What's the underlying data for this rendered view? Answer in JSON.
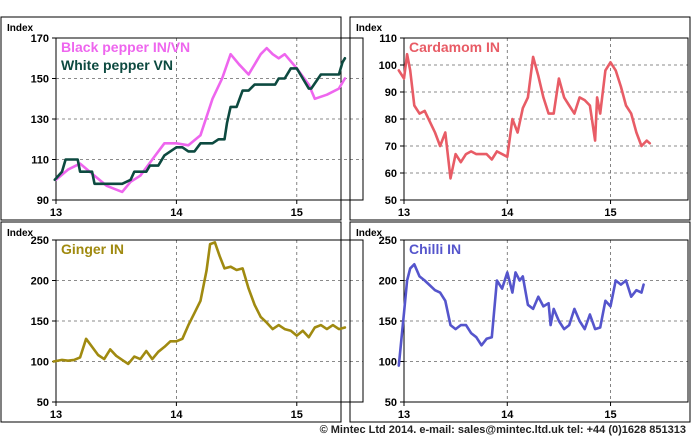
{
  "footer": "© Mintec Ltd 2014. e-mail: sales@mintec.ltd.uk tel: +44 (0)1628 851313",
  "chart_data": [
    {
      "type": "line",
      "ylabel": "Index",
      "ylim": [
        90,
        170
      ],
      "yticks": [
        90,
        110,
        130,
        150,
        170
      ],
      "xlim": [
        2013,
        2015.55
      ],
      "xticks": [
        {
          "x": 2013,
          "label": "13"
        },
        {
          "x": 2014,
          "label": "14"
        },
        {
          "x": 2015,
          "label": "15"
        }
      ],
      "grid": true,
      "legend": "top-left",
      "series": [
        {
          "name": "Black pepper IN/VN",
          "color": "#ee66ee",
          "x": [
            2013.0,
            2013.1,
            2013.2,
            2013.3,
            2013.42,
            2013.55,
            2013.62,
            2013.7,
            2013.8,
            2013.9,
            2014.0,
            2014.1,
            2014.2,
            2014.3,
            2014.38,
            2014.45,
            2014.52,
            2014.6,
            2014.7,
            2014.75,
            2014.8,
            2014.85,
            2014.9,
            2015.0,
            2015.1,
            2015.15,
            2015.25,
            2015.35,
            2015.4
          ],
          "y": [
            100,
            105,
            108,
            103,
            97,
            94,
            99,
            102,
            110,
            118,
            118,
            117,
            122,
            140,
            150,
            162,
            157,
            152,
            162,
            165,
            162,
            160,
            162,
            155,
            147,
            140,
            142,
            145,
            150
          ]
        },
        {
          "name": "White pepper VN",
          "color": "#0d4a40",
          "x": [
            2012.99,
            2013.05,
            2013.08,
            2013.18,
            2013.2,
            2013.3,
            2013.32,
            2013.45,
            2013.55,
            2013.62,
            2013.65,
            2013.75,
            2013.78,
            2013.85,
            2013.9,
            2014.0,
            2014.05,
            2014.1,
            2014.15,
            2014.2,
            2014.3,
            2014.35,
            2014.4,
            2014.42,
            2014.45,
            2014.5,
            2014.55,
            2014.6,
            2014.65,
            2014.7,
            2014.82,
            2014.85,
            2014.9,
            2014.95,
            2015.0,
            2015.05,
            2015.1,
            2015.12,
            2015.2,
            2015.25,
            2015.35,
            2015.38,
            2015.4
          ],
          "y": [
            100,
            104,
            110,
            110,
            104,
            104,
            98,
            98,
            98,
            100,
            104,
            104,
            107,
            107,
            112,
            116,
            116,
            114,
            114,
            118,
            118,
            120,
            120,
            128,
            136,
            136,
            144,
            144,
            147,
            147,
            147,
            150,
            150,
            155,
            155,
            150,
            145,
            145,
            152,
            152,
            152,
            158,
            160
          ]
        }
      ]
    },
    {
      "type": "line",
      "ylabel": "Index",
      "ylim": [
        50,
        110
      ],
      "yticks": [
        50,
        60,
        70,
        80,
        90,
        100,
        110
      ],
      "xlim": [
        2013,
        2015.75
      ],
      "xticks": [
        {
          "x": 2013,
          "label": "13"
        },
        {
          "x": 2014,
          "label": "14"
        },
        {
          "x": 2015,
          "label": "15"
        }
      ],
      "grid": true,
      "legend": "top-left",
      "series": [
        {
          "name": "Cardamom IN",
          "color": "#e85c66",
          "x": [
            2012.95,
            2013.0,
            2013.03,
            2013.06,
            2013.1,
            2013.15,
            2013.2,
            2013.3,
            2013.35,
            2013.4,
            2013.45,
            2013.5,
            2013.55,
            2013.6,
            2013.65,
            2013.7,
            2013.8,
            2013.85,
            2013.9,
            2014.0,
            2014.05,
            2014.1,
            2014.15,
            2014.2,
            2014.25,
            2014.3,
            2014.35,
            2014.4,
            2014.45,
            2014.5,
            2014.55,
            2014.6,
            2014.65,
            2014.7,
            2014.75,
            2014.8,
            2014.85,
            2014.87,
            2014.9,
            2014.95,
            2015.0,
            2015.05,
            2015.1,
            2015.15,
            2015.2,
            2015.25,
            2015.3,
            2015.35,
            2015.38
          ],
          "y": [
            98,
            95,
            104,
            98,
            85,
            82,
            83,
            75,
            70,
            75,
            58,
            67,
            64,
            67,
            68,
            67,
            67,
            65,
            68,
            66,
            80,
            75,
            84,
            88,
            103,
            96,
            88,
            82,
            82,
            95,
            88,
            85,
            82,
            88,
            87,
            85,
            72,
            88,
            82,
            98,
            101,
            98,
            92,
            85,
            82,
            75,
            70,
            72,
            71
          ]
        }
      ]
    },
    {
      "type": "line",
      "ylabel": "Index",
      "ylim": [
        50,
        250
      ],
      "yticks": [
        50,
        100,
        150,
        200,
        250
      ],
      "xlim": [
        2013,
        2015.55
      ],
      "xticks": [
        {
          "x": 2013,
          "label": "13"
        },
        {
          "x": 2014,
          "label": "14"
        },
        {
          "x": 2015,
          "label": "15"
        }
      ],
      "grid": true,
      "legend": "top-left",
      "series": [
        {
          "name": "Ginger IN",
          "color": "#a08a10",
          "x": [
            2012.98,
            2013.05,
            2013.1,
            2013.15,
            2013.2,
            2013.25,
            2013.3,
            2013.35,
            2013.4,
            2013.45,
            2013.5,
            2013.55,
            2013.6,
            2013.65,
            2013.7,
            2013.75,
            2013.8,
            2013.85,
            2013.9,
            2013.95,
            2014.0,
            2014.05,
            2014.1,
            2014.15,
            2014.2,
            2014.25,
            2014.28,
            2014.32,
            2014.36,
            2014.4,
            2014.45,
            2014.5,
            2014.55,
            2014.6,
            2014.65,
            2014.7,
            2014.75,
            2014.8,
            2014.85,
            2014.9,
            2014.95,
            2015.0,
            2015.05,
            2015.1,
            2015.15,
            2015.2,
            2015.25,
            2015.3,
            2015.35,
            2015.4
          ],
          "y": [
            100,
            102,
            101,
            102,
            105,
            128,
            118,
            108,
            103,
            115,
            107,
            102,
            97,
            106,
            103,
            113,
            103,
            112,
            118,
            125,
            125,
            128,
            145,
            160,
            175,
            212,
            245,
            247,
            230,
            215,
            217,
            213,
            215,
            190,
            170,
            155,
            148,
            140,
            145,
            140,
            138,
            132,
            138,
            130,
            142,
            145,
            140,
            145,
            140,
            142
          ]
        }
      ]
    },
    {
      "type": "line",
      "ylabel": "Index",
      "ylim": [
        50,
        250
      ],
      "yticks": [
        50,
        100,
        150,
        200,
        250
      ],
      "xlim": [
        2013,
        2015.75
      ],
      "xticks": [
        {
          "x": 2013,
          "label": "13"
        },
        {
          "x": 2014,
          "label": "14"
        },
        {
          "x": 2015,
          "label": "15"
        }
      ],
      "grid": true,
      "legend": "top-left",
      "series": [
        {
          "name": "Chilli IN",
          "color": "#5555cc",
          "x": [
            2012.95,
            2013.0,
            2013.03,
            2013.06,
            2013.1,
            2013.15,
            2013.2,
            2013.3,
            2013.35,
            2013.4,
            2013.45,
            2013.5,
            2013.55,
            2013.6,
            2013.65,
            2013.7,
            2013.75,
            2013.8,
            2013.85,
            2013.9,
            2013.95,
            2014.0,
            2014.03,
            2014.05,
            2014.08,
            2014.12,
            2014.15,
            2014.2,
            2014.25,
            2014.3,
            2014.35,
            2014.4,
            2014.42,
            2014.45,
            2014.5,
            2014.55,
            2014.6,
            2014.65,
            2014.7,
            2014.75,
            2014.8,
            2014.85,
            2014.9,
            2014.95,
            2015.0,
            2015.05,
            2015.1,
            2015.15,
            2015.2,
            2015.25,
            2015.3,
            2015.32
          ],
          "y": [
            95,
            160,
            200,
            215,
            220,
            205,
            200,
            188,
            185,
            175,
            145,
            140,
            145,
            145,
            135,
            130,
            120,
            128,
            130,
            200,
            190,
            210,
            195,
            185,
            210,
            200,
            205,
            170,
            165,
            180,
            168,
            172,
            145,
            165,
            150,
            140,
            145,
            165,
            150,
            140,
            158,
            140,
            142,
            175,
            168,
            200,
            195,
            200,
            180,
            188,
            185,
            195
          ]
        }
      ]
    }
  ]
}
